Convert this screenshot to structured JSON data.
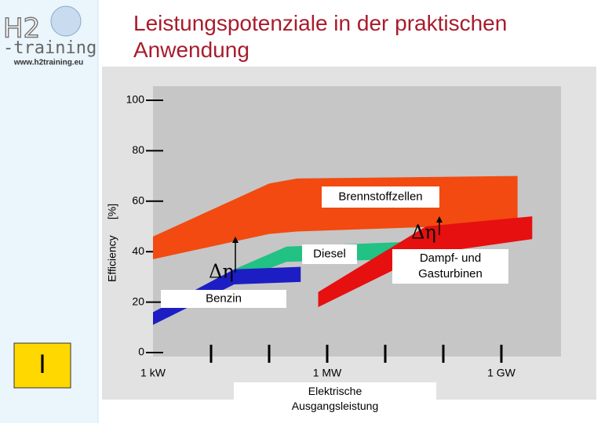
{
  "logo": {
    "mark": "H2",
    "name": "-training",
    "url": "www.h2training.eu"
  },
  "slide_marker": "I",
  "chart_data": {
    "type": "area",
    "title": "Leistungspotenziale in der praktischen Anwendung",
    "ylabel": "Efficiency",
    "yunit": "[%]",
    "xlabel": "Elektrische Ausgangsleistung",
    "xscale": "log",
    "xlim": [
      1000,
      8000000000
    ],
    "ylim": [
      0,
      100
    ],
    "xticks": [
      {
        "value": 1000,
        "label": "1 kW"
      },
      {
        "value": 1000000,
        "label": "1 MW"
      },
      {
        "value": 1000000000,
        "label": "1 GW"
      }
    ],
    "xminor_ticks": [
      10000,
      100000,
      10000000,
      100000000
    ],
    "yticks": [
      0,
      20,
      40,
      60,
      80,
      100
    ],
    "series": [
      {
        "name": "Brennstoffzellen",
        "color": "#f24a10",
        "x": [
          1000,
          100000,
          300000,
          1900000000
        ],
        "upper": [
          46,
          67,
          69,
          70
        ],
        "lower": [
          37,
          47,
          48,
          51
        ]
      },
      {
        "name": "Diesel",
        "color": "#22c184",
        "x": [
          25000,
          200000,
          34000000
        ],
        "upper": [
          33,
          42,
          44
        ],
        "lower": [
          28,
          36,
          37
        ]
      },
      {
        "name": "Benzin",
        "color": "#1c1ec4",
        "x": [
          1000,
          25000,
          350000
        ],
        "upper": [
          16,
          33,
          34
        ],
        "lower": [
          11,
          27,
          28
        ]
      },
      {
        "name": "Dampf- und Gasturbinen",
        "color": "#e61010",
        "x": [
          700000,
          50000000,
          3400000000
        ],
        "upper": [
          24,
          50,
          54
        ],
        "lower": [
          18,
          39,
          45
        ]
      }
    ],
    "annotations": [
      {
        "text": "Δη"
      },
      {
        "text": "Δη"
      }
    ]
  }
}
